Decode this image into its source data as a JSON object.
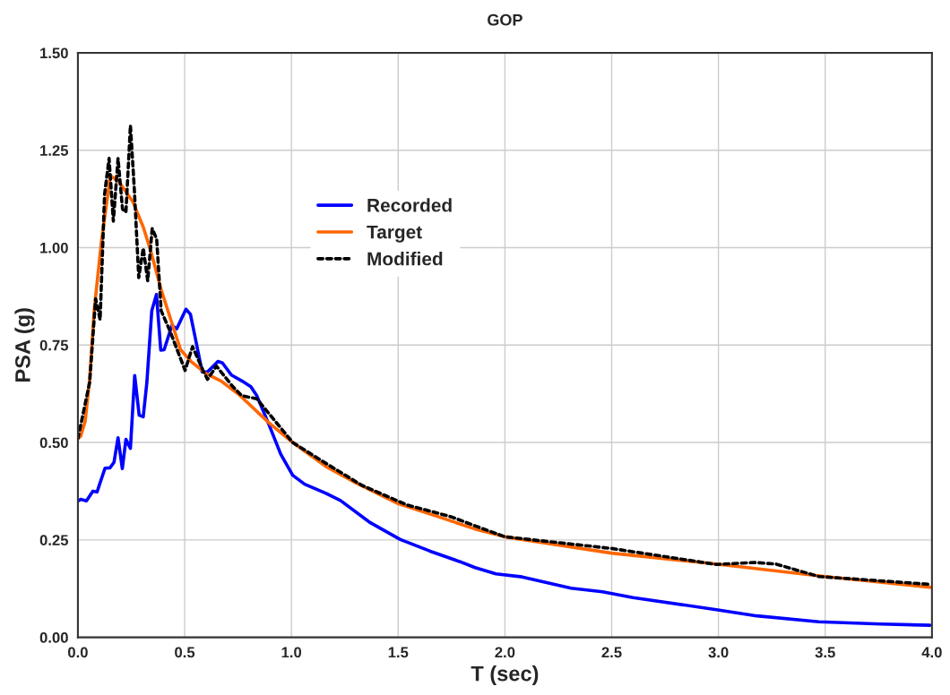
{
  "chart_data": {
    "type": "line",
    "title": "GOP",
    "xlabel": "T (sec)",
    "ylabel": "PSA (g)",
    "xlim": [
      0,
      4
    ],
    "ylim": [
      0,
      1.5
    ],
    "xticks": [
      {
        "value": 0,
        "label": "0.0"
      },
      {
        "value": 0.5,
        "label": "0.5"
      },
      {
        "value": 1,
        "label": "1.0"
      },
      {
        "value": 1.5,
        "label": "1.5"
      },
      {
        "value": 2,
        "label": "2.0"
      },
      {
        "value": 2.5,
        "label": "2.5"
      },
      {
        "value": 3,
        "label": "3.0"
      },
      {
        "value": 3.5,
        "label": "3.5"
      },
      {
        "value": 4,
        "label": "4.0"
      }
    ],
    "yticks": [
      {
        "value": 0,
        "label": "0.00"
      },
      {
        "value": 0.25,
        "label": "0.25"
      },
      {
        "value": 0.5,
        "label": "0.50"
      },
      {
        "value": 0.75,
        "label": "0.75"
      },
      {
        "value": 1,
        "label": "1.00"
      },
      {
        "value": 1.25,
        "label": "1.25"
      },
      {
        "value": 1.5,
        "label": "1.50"
      }
    ],
    "grid": true,
    "legend": "top",
    "marker": "none",
    "series": [
      {
        "name": "Recorded",
        "color": "#0000ff",
        "line_style": "solid",
        "x": [
          0.0,
          0.013,
          0.04,
          0.07,
          0.09,
          0.1,
          0.127,
          0.15,
          0.169,
          0.188,
          0.208,
          0.225,
          0.246,
          0.266,
          0.287,
          0.306,
          0.323,
          0.346,
          0.368,
          0.388,
          0.404,
          0.44,
          0.463,
          0.506,
          0.527,
          0.551,
          0.582,
          0.607,
          0.656,
          0.677,
          0.719,
          0.768,
          0.81,
          0.838,
          0.894,
          0.95,
          1.006,
          1.062,
          1.16,
          1.23,
          1.37,
          1.51,
          1.65,
          1.79,
          1.86,
          1.958,
          2.081,
          2.31,
          2.457,
          2.6,
          2.99,
          3.18,
          3.47,
          3.76,
          3.99
        ],
        "values": [
          0.35,
          0.354,
          0.35,
          0.375,
          0.373,
          0.39,
          0.434,
          0.435,
          0.449,
          0.512,
          0.433,
          0.508,
          0.485,
          0.672,
          0.57,
          0.566,
          0.654,
          0.838,
          0.88,
          0.737,
          0.738,
          0.8,
          0.792,
          0.842,
          0.829,
          0.765,
          0.681,
          0.681,
          0.708,
          0.704,
          0.673,
          0.658,
          0.643,
          0.62,
          0.547,
          0.47,
          0.416,
          0.393,
          0.37,
          0.351,
          0.294,
          0.251,
          0.221,
          0.194,
          0.179,
          0.163,
          0.155,
          0.126,
          0.117,
          0.102,
          0.071,
          0.055,
          0.04,
          0.034,
          0.031
        ]
      },
      {
        "name": "Target",
        "color": "#ff6600",
        "line_style": "solid",
        "x": [
          0.0,
          0.013,
          0.034,
          0.055,
          0.076,
          0.11,
          0.152,
          0.194,
          0.257,
          0.306,
          0.341,
          0.39,
          0.44,
          0.481,
          0.53,
          0.6,
          0.67,
          0.754,
          0.894,
          1.006,
          1.16,
          1.3,
          1.5,
          1.69,
          1.86,
          2.0,
          2.5,
          2.99,
          3.5,
          4.0
        ],
        "values": [
          0.51,
          0.516,
          0.554,
          0.662,
          0.838,
          1.015,
          1.185,
          1.168,
          1.118,
          1.053,
          0.992,
          0.892,
          0.807,
          0.738,
          0.708,
          0.677,
          0.658,
          0.623,
          0.551,
          0.5,
          0.439,
          0.397,
          0.343,
          0.309,
          0.278,
          0.258,
          0.216,
          0.188,
          0.156,
          0.128
        ]
      },
      {
        "name": "Modified",
        "color": "#000000",
        "line_style": "dotted",
        "x": [
          0.0,
          0.055,
          0.083,
          0.104,
          0.125,
          0.146,
          0.166,
          0.188,
          0.209,
          0.225,
          0.246,
          0.264,
          0.285,
          0.306,
          0.327,
          0.348,
          0.369,
          0.39,
          0.432,
          0.502,
          0.537,
          0.586,
          0.607,
          0.649,
          0.726,
          0.768,
          0.838,
          1.006,
          1.16,
          1.33,
          1.54,
          1.75,
          1.86,
          2.0,
          2.5,
          2.99,
          3.17,
          3.27,
          3.47,
          3.99
        ],
        "values": [
          0.51,
          0.654,
          0.869,
          0.815,
          1.137,
          1.229,
          1.068,
          1.229,
          1.099,
          1.091,
          1.314,
          1.153,
          0.923,
          0.999,
          0.915,
          1.049,
          1.022,
          0.838,
          0.785,
          0.685,
          0.746,
          0.685,
          0.662,
          0.696,
          0.643,
          0.62,
          0.612,
          0.5,
          0.447,
          0.39,
          0.34,
          0.309,
          0.286,
          0.258,
          0.228,
          0.187,
          0.192,
          0.188,
          0.156,
          0.136
        ]
      }
    ]
  }
}
